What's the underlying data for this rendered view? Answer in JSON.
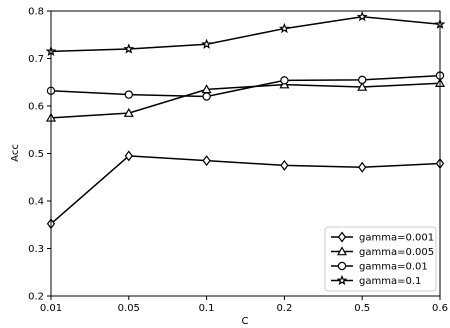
{
  "chart_data": {
    "type": "line",
    "categories": [
      "0.01",
      "0.05",
      "0.1",
      "0.2",
      "0.5",
      "0.6"
    ],
    "series": [
      {
        "name": "gamma=0.001",
        "marker": "diamond",
        "values": [
          0.352,
          0.495,
          0.485,
          0.475,
          0.471,
          0.479
        ]
      },
      {
        "name": "gamma=0.005",
        "marker": "triangle",
        "values": [
          0.575,
          0.585,
          0.635,
          0.645,
          0.64,
          0.648
        ]
      },
      {
        "name": "gamma=0.01",
        "marker": "circle",
        "values": [
          0.632,
          0.624,
          0.62,
          0.654,
          0.655,
          0.664
        ]
      },
      {
        "name": "gamma=0.1",
        "marker": "star",
        "values": [
          0.715,
          0.72,
          0.73,
          0.763,
          0.788,
          0.772
        ]
      }
    ],
    "xlabel": "C",
    "ylabel": "Acc",
    "ylim": [
      0.2,
      0.8
    ],
    "yticks": [
      "0.2",
      "0.3",
      "0.4",
      "0.5",
      "0.6",
      "0.7",
      "0.8"
    ],
    "grid": false,
    "legend_position": "lower-right",
    "line_color": "#000000"
  }
}
